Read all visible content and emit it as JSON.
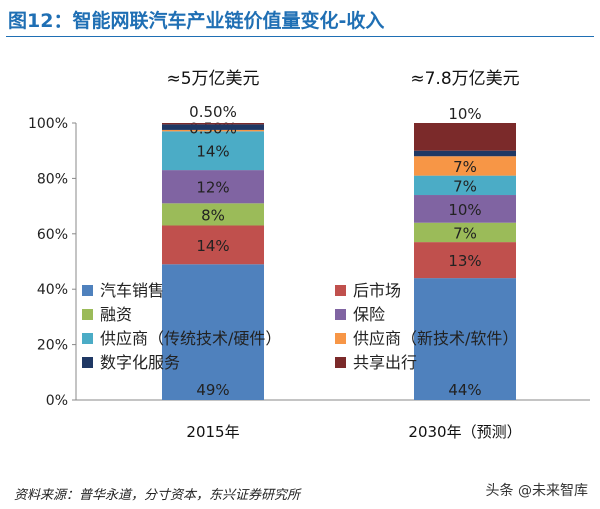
{
  "title": "图12：智能网联汽车产业链价值量变化-收入",
  "source": "资料来源：普华永道，分寸资本，东兴证券研究所",
  "watermark": "头条 @未来智库",
  "chart_data": {
    "type": "stacked-bar",
    "categories": [
      "2015年",
      "2030年（预测）"
    ],
    "totals": [
      "≈5万亿美元",
      "≈7.8万亿美元"
    ],
    "ylim": [
      0,
      100
    ],
    "yticks": [
      "0%",
      "20%",
      "40%",
      "60%",
      "80%",
      "100%"
    ],
    "legend_position": "overlaid-center",
    "series": [
      {
        "name": "汽车销售",
        "color": "#4f81bd",
        "values": [
          49,
          44
        ],
        "labels": [
          "49%",
          "44%"
        ]
      },
      {
        "name": "后市场",
        "color": "#c0504d",
        "values": [
          14,
          13
        ],
        "labels": [
          "14%",
          "13%"
        ]
      },
      {
        "name": "融资",
        "color": "#9bbb59",
        "values": [
          8,
          7
        ],
        "labels": [
          "8%",
          "7%"
        ]
      },
      {
        "name": "保险",
        "color": "#8064a2",
        "values": [
          12,
          10
        ],
        "labels": [
          "12%",
          "10%"
        ]
      },
      {
        "name": "供应商（传统技术/硬件）",
        "color": "#4bacc6",
        "values": [
          14,
          7
        ],
        "labels": [
          "14%",
          "7%"
        ]
      },
      {
        "name": "供应商（新技术/软件）",
        "color": "#f79646",
        "values": [
          0.5,
          7
        ],
        "labels": [
          "0.50%",
          "7%"
        ]
      },
      {
        "name": "数字化服务",
        "color": "#1f3864",
        "values": [
          2,
          2
        ],
        "labels": [
          "",
          ""
        ]
      },
      {
        "name": "共享出行",
        "color": "#7b2a2a",
        "values": [
          0.5,
          10
        ],
        "labels": [
          "0.50%",
          "10%"
        ]
      }
    ]
  }
}
